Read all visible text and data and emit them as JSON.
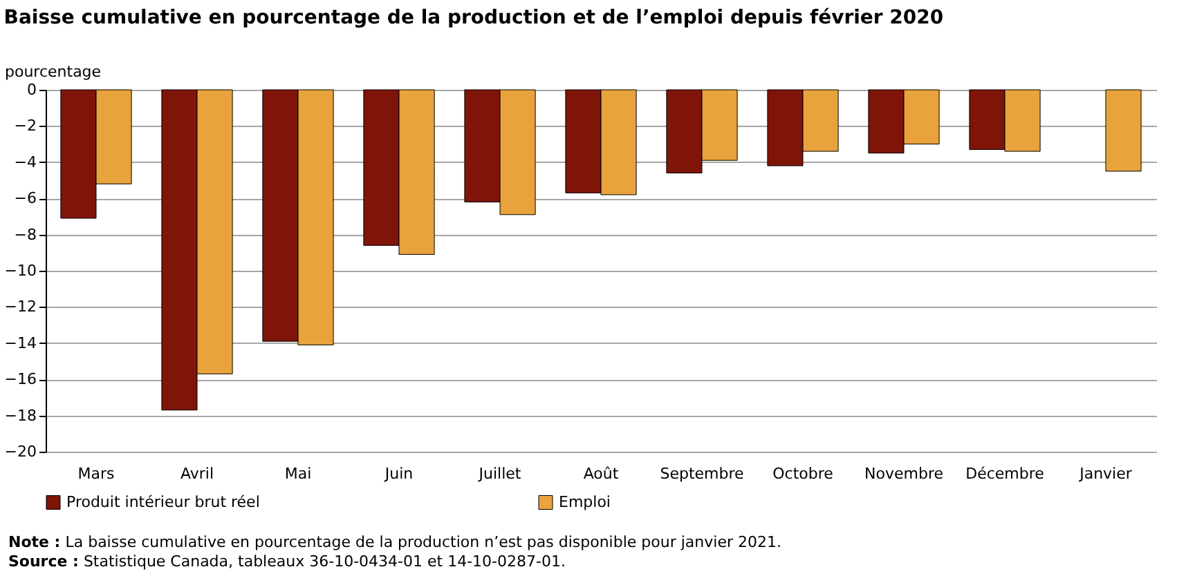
{
  "chart_data": {
    "type": "bar",
    "title": "Baisse cumulative en pourcentage de la production  et de l’emploi depuis février 2020",
    "ylabel": "pourcentage",
    "categories": [
      "Mars",
      "Avril",
      "Mai",
      "Juin",
      "Juillet",
      "Août",
      "Septembre",
      "Octobre",
      "Novembre",
      "Décembre",
      "Janvier"
    ],
    "series": [
      {
        "name": "Produit intérieur brut réel",
        "color": "#7f1409",
        "values": [
          -7.1,
          -17.7,
          -13.9,
          -8.6,
          -6.2,
          -5.7,
          -4.6,
          -4.2,
          -3.5,
          -3.3,
          null
        ]
      },
      {
        "name": "Emploi",
        "color": "#e8a33d",
        "values": [
          -5.2,
          -15.7,
          -14.1,
          -9.1,
          -6.9,
          -5.8,
          -3.9,
          -3.4,
          -3.0,
          -3.4,
          -4.5
        ]
      }
    ],
    "ylim": [
      -20,
      0
    ],
    "yticks": [
      0,
      -2,
      -4,
      -6,
      -8,
      -10,
      -12,
      -14,
      -16,
      -18,
      -20
    ],
    "grid": "y",
    "legend": "bottom",
    "annotations": [
      "Note : La baisse cumulative en pourcentage de la production n’est pas disponible pour janvier 2021.",
      "Source : Statistique Canada, tableaux 36-10-0434-01 et 14-10-0287-01."
    ]
  }
}
